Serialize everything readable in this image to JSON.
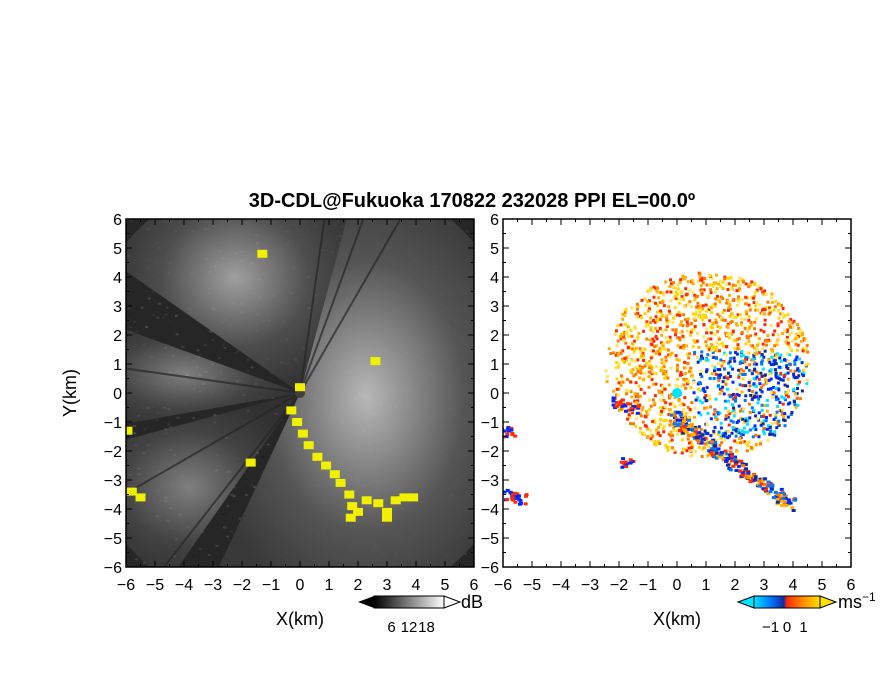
{
  "title": "3D-CDL@Fukuoka 170822 232028 PPI EL=00.0º",
  "chart_data": [
    {
      "type": "heatmap",
      "panel": "left",
      "quantity": "reflectivity",
      "xlabel": "X(km)",
      "ylabel": "Y(km)",
      "xlim": [
        -6,
        6
      ],
      "ylim": [
        -6,
        6
      ],
      "xticks": [
        "−6",
        "−5",
        "−4",
        "−3",
        "−2",
        "−1",
        "0",
        "1",
        "2",
        "3",
        "4",
        "5",
        "6"
      ],
      "yticks": [
        "6",
        "5",
        "4",
        "3",
        "2",
        "1",
        "0",
        "−1",
        "−2",
        "−3",
        "−4",
        "−5",
        "−6"
      ],
      "colorbar": {
        "unit": "dB",
        "ticks": [
          6,
          12,
          18
        ],
        "tick_labels": [
          "6",
          "12",
          "18"
        ],
        "range": [
          0,
          24
        ]
      }
    },
    {
      "type": "heatmap",
      "panel": "right",
      "quantity": "doppler velocity",
      "xlabel": "X(km)",
      "ylabel": "",
      "xlim": [
        -6,
        6
      ],
      "ylim": [
        -6,
        6
      ],
      "xticks": [
        "−6",
        "−5",
        "−4",
        "−3",
        "−2",
        "−1",
        "0",
        "1",
        "2",
        "3",
        "4",
        "5",
        "6"
      ],
      "yticks": [
        "6",
        "5",
        "4",
        "3",
        "2",
        "1",
        "0",
        "−1",
        "−2",
        "−3",
        "−4",
        "−5",
        "−6"
      ],
      "colorbar": {
        "unit": "ms",
        "unit_sup": "−1",
        "ticks": [
          -1,
          0,
          1
        ],
        "tick_labels": [
          "−1",
          "0",
          "1"
        ],
        "range": [
          -2,
          2
        ]
      }
    }
  ],
  "colors": {
    "left_background": "#262626",
    "left_clutter": "#f0f000",
    "right_background": "#ffffff",
    "velocity_scale": [
      "#00e5ff",
      "#0078ff",
      "#0028ff",
      "#102aa0",
      "#ff2a00",
      "#ff7a00",
      "#ffb000",
      "#ffd800"
    ]
  }
}
